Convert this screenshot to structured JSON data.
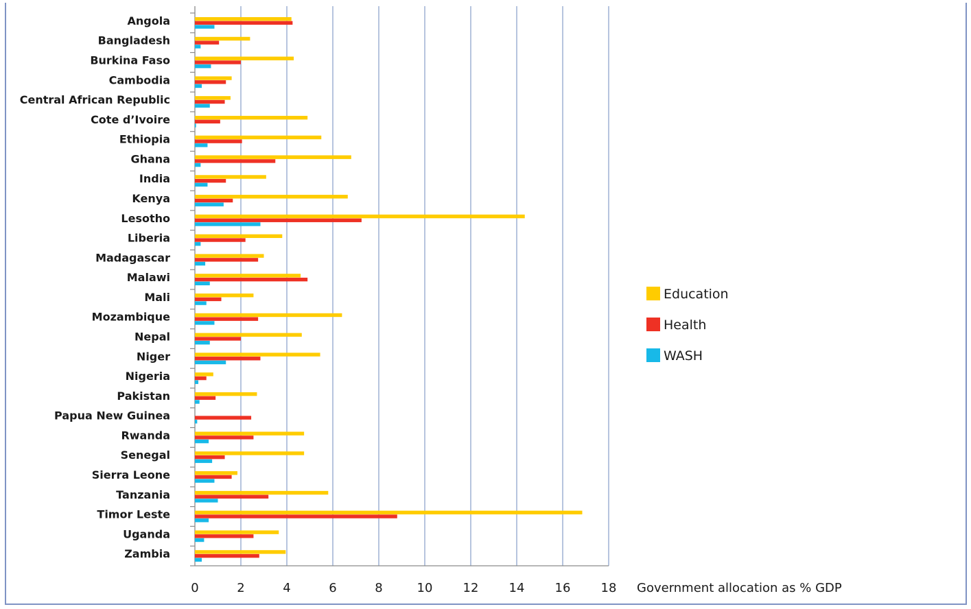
{
  "chart_data": {
    "type": "bar",
    "orientation": "horizontal",
    "categories": [
      "Angola",
      "Bangladesh",
      "Burkina Faso",
      "Cambodia",
      "Central African Republic",
      "Cote d’Ivoire",
      "Ethiopia",
      "Ghana",
      "India",
      "Kenya",
      "Lesotho",
      "Liberia",
      "Madagascar",
      "Malawi",
      "Mali",
      "Mozambique",
      "Nepal",
      "Niger",
      "Nigeria",
      "Pakistan",
      "Papua New Guinea",
      "Rwanda",
      "Senegal",
      "Sierra Leone",
      "Tanzania",
      "Timor Leste",
      "Uganda",
      "Zambia"
    ],
    "series": [
      {
        "name": "Education",
        "color": "#ffcc00",
        "values": [
          4.2,
          2.4,
          4.3,
          1.6,
          1.55,
          4.9,
          5.5,
          6.8,
          3.1,
          6.65,
          14.35,
          3.8,
          3.0,
          4.6,
          2.55,
          6.4,
          4.65,
          5.45,
          0.8,
          2.7,
          0.0,
          4.75,
          4.75,
          1.85,
          5.8,
          16.85,
          3.65,
          3.95
        ]
      },
      {
        "name": "Health",
        "color": "#ee3124",
        "values": [
          4.25,
          1.05,
          2.0,
          1.35,
          1.3,
          1.1,
          2.05,
          3.5,
          1.35,
          1.65,
          7.25,
          2.2,
          2.75,
          4.9,
          1.15,
          2.75,
          2.0,
          2.85,
          0.5,
          0.9,
          2.45,
          2.55,
          1.3,
          1.6,
          3.2,
          8.8,
          2.55,
          2.8
        ]
      },
      {
        "name": "WASH",
        "color": "#18b9e8",
        "values": [
          0.85,
          0.25,
          0.7,
          0.3,
          0.65,
          0.05,
          0.55,
          0.25,
          0.55,
          1.25,
          2.85,
          0.25,
          0.45,
          0.65,
          0.5,
          0.85,
          0.65,
          1.35,
          0.15,
          0.2,
          0.1,
          0.6,
          0.75,
          0.85,
          1.0,
          0.6,
          0.4,
          0.3
        ]
      }
    ],
    "xlabel": "Government allocation as % GDP",
    "xlim": [
      0,
      18
    ],
    "xticks": [
      "0",
      "2",
      "4",
      "6",
      "8",
      "10",
      "12",
      "14",
      "16",
      "18"
    ],
    "grid": "vertical",
    "legend": "right"
  }
}
